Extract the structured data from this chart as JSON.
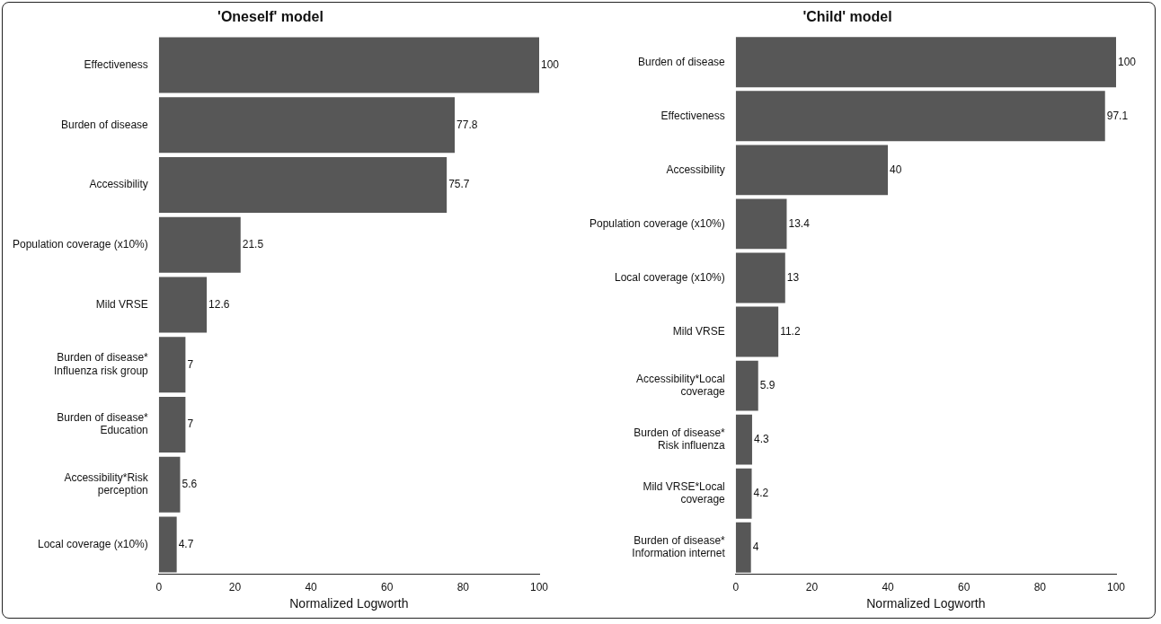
{
  "chart_data": [
    {
      "type": "bar",
      "orientation": "horizontal",
      "title": "'Oneself' model",
      "xlabel": "Normalized Logworth",
      "categories": [
        "Effectiveness",
        "Burden of disease",
        "Accessibility",
        "Population coverage (x10%)",
        "Mild VRSE",
        "Burden of disease*\nInfluenza risk group",
        "Burden of disease*\nEducation",
        "Accessibility*Risk\nperception",
        "Local coverage (x10%)"
      ],
      "values": [
        100,
        77.8,
        75.7,
        21.5,
        12.6,
        7,
        7,
        5.6,
        4.7
      ],
      "color": "#575757",
      "xlim": [
        0,
        100
      ],
      "xticks": [
        0,
        20,
        40,
        60,
        80,
        100
      ],
      "data_labels": true,
      "grid": false,
      "legend": false
    },
    {
      "type": "bar",
      "orientation": "horizontal",
      "title": "'Child' model",
      "xlabel": "Normalized Logworth",
      "categories": [
        "Burden of disease",
        "Effectiveness",
        "Accessibility",
        "Population coverage (x10%)",
        "Local coverage (x10%)",
        "Mild VRSE",
        "Accessibility*Local\ncoverage",
        "Burden of disease*\nRisk influenza",
        "Mild VRSE*Local\ncoverage",
        "Burden of disease*\nInformation internet"
      ],
      "values": [
        100,
        97.1,
        40,
        13.4,
        13,
        11.2,
        5.9,
        4.3,
        4.2,
        4
      ],
      "color": "#575757",
      "xlim": [
        0,
        100
      ],
      "xticks": [
        0,
        20,
        40,
        60,
        80,
        100
      ],
      "data_labels": true,
      "grid": false,
      "legend": false
    }
  ]
}
